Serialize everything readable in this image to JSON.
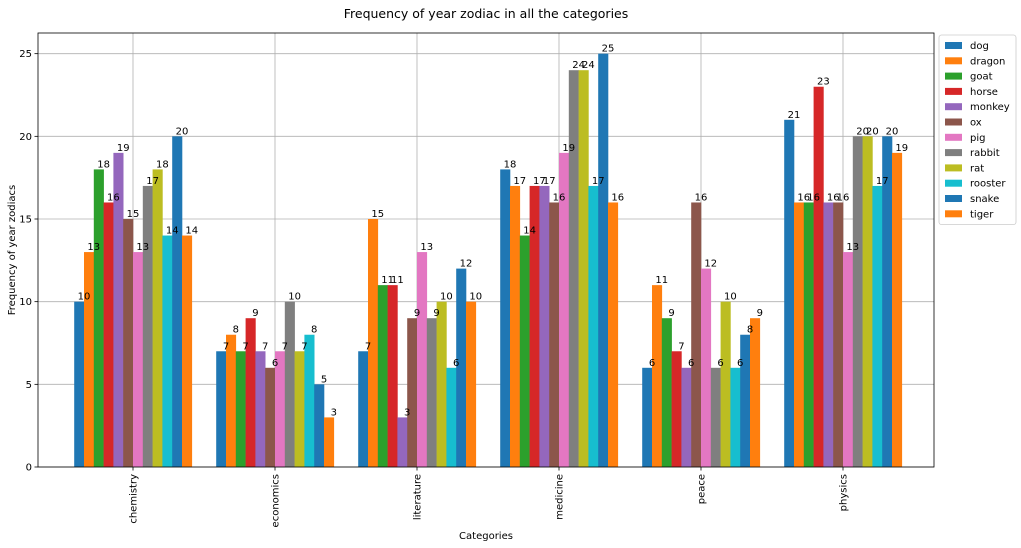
{
  "chart_data": {
    "type": "bar",
    "title": "Frequency of year zodiac in all the categories",
    "xlabel": "Categories",
    "ylabel": "Frequency of year zodiacs",
    "categories": [
      "chemistry",
      "economics",
      "literature",
      "medicine",
      "peace",
      "physics"
    ],
    "ylim": [
      0,
      26.25
    ],
    "yticks": [
      0,
      5,
      10,
      15,
      20,
      25
    ],
    "grid": true,
    "legend_position": "outside-right",
    "series": [
      {
        "name": "dog",
        "color": "#1f77b4",
        "values": [
          10,
          7,
          7,
          18,
          6,
          21
        ]
      },
      {
        "name": "dragon",
        "color": "#ff7f0e",
        "values": [
          13,
          8,
          15,
          17,
          11,
          16
        ]
      },
      {
        "name": "goat",
        "color": "#2ca02c",
        "values": [
          18,
          7,
          11,
          14,
          9,
          16
        ]
      },
      {
        "name": "horse",
        "color": "#d62728",
        "values": [
          16,
          9,
          11,
          17,
          7,
          23
        ]
      },
      {
        "name": "monkey",
        "color": "#9467bd",
        "values": [
          19,
          7,
          3,
          17,
          6,
          16
        ]
      },
      {
        "name": "ox",
        "color": "#8c564b",
        "values": [
          15,
          6,
          9,
          16,
          16,
          16
        ]
      },
      {
        "name": "pig",
        "color": "#e377c2",
        "values": [
          13,
          7,
          13,
          19,
          12,
          13
        ]
      },
      {
        "name": "rabbit",
        "color": "#7f7f7f",
        "values": [
          17,
          10,
          9,
          24,
          6,
          20
        ]
      },
      {
        "name": "rat",
        "color": "#bcbd22",
        "values": [
          18,
          7,
          10,
          24,
          10,
          20
        ]
      },
      {
        "name": "rooster",
        "color": "#17becf",
        "values": [
          14,
          8,
          6,
          17,
          6,
          17
        ]
      },
      {
        "name": "snake",
        "color": "#1f77b4",
        "values": [
          20,
          5,
          12,
          25,
          8,
          20
        ]
      },
      {
        "name": "tiger",
        "color": "#ff7f0e",
        "values": [
          14,
          3,
          10,
          16,
          9,
          19
        ]
      }
    ]
  }
}
